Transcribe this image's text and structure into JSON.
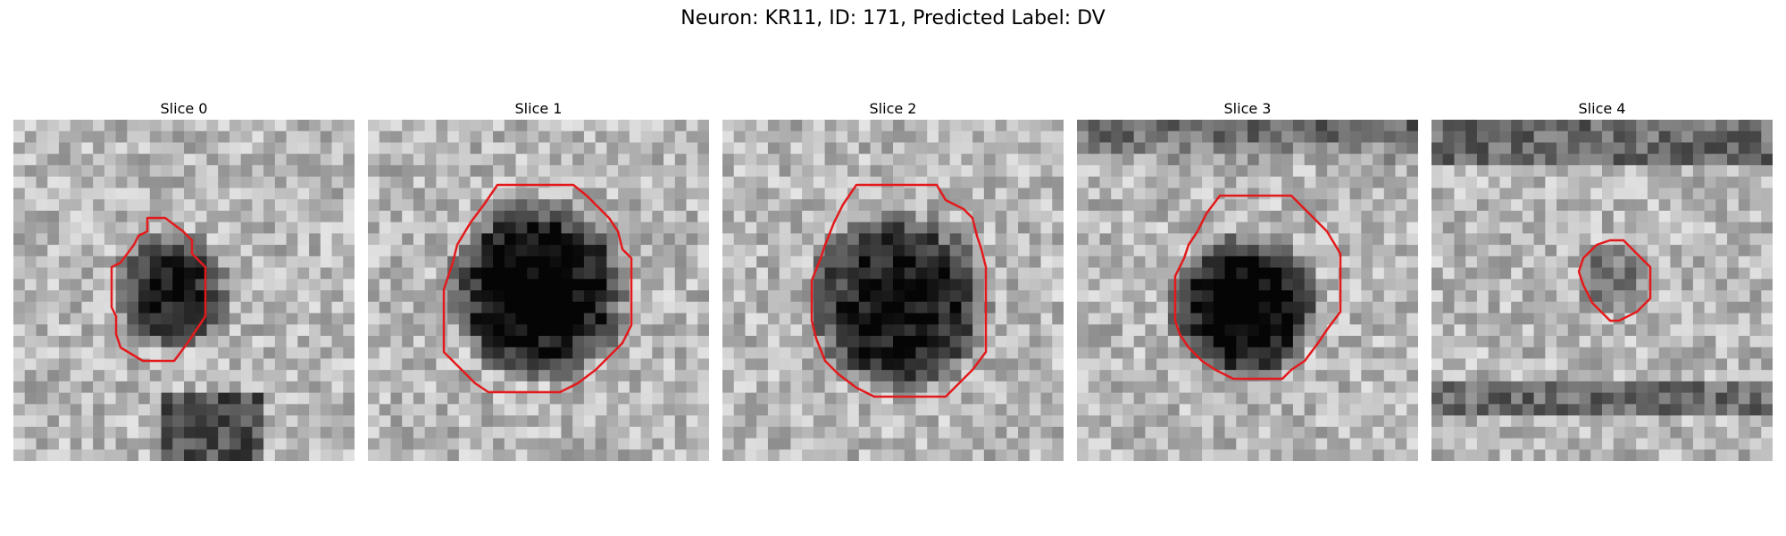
{
  "figure": {
    "title": "Neuron: KR11, ID: 171, Predicted Label: DV",
    "contour_color": "#e31a1c",
    "colormap": "gray",
    "panels": [
      {
        "title": "Slice 0",
        "image": "grayscale-patch-small-dark-blob"
      },
      {
        "title": "Slice 1",
        "image": "grayscale-patch-large-dark-blob"
      },
      {
        "title": "Slice 2",
        "image": "grayscale-patch-large-dark-blob"
      },
      {
        "title": "Slice 3",
        "image": "grayscale-patch-medium-dark-blob"
      },
      {
        "title": "Slice 4",
        "image": "grayscale-patch-faint-small-blob"
      }
    ]
  }
}
